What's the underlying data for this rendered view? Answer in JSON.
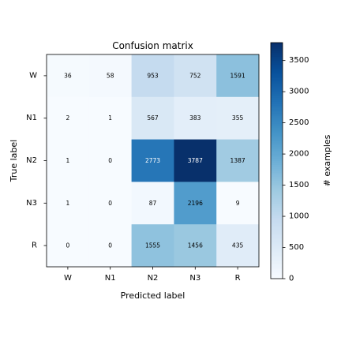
{
  "chart_data": {
    "type": "heatmap",
    "title": "Confusion matrix",
    "xlabel": "Predicted label",
    "ylabel": "True label",
    "x_categories": [
      "W",
      "N1",
      "N2",
      "N3",
      "R"
    ],
    "y_categories": [
      "W",
      "N1",
      "N2",
      "N3",
      "R"
    ],
    "values": [
      [
        36,
        58,
        953,
        752,
        1591
      ],
      [
        2,
        1,
        567,
        383,
        355
      ],
      [
        1,
        0,
        2773,
        3787,
        1387
      ],
      [
        1,
        0,
        87,
        2196,
        9
      ],
      [
        0,
        0,
        1555,
        1456,
        435
      ]
    ],
    "colormap": "Blues",
    "value_range": [
      0,
      3787
    ],
    "colorbar": {
      "label": "# examples",
      "ticks": [
        0,
        500,
        1000,
        1500,
        2000,
        2500,
        3000,
        3500
      ],
      "tick_labels": [
        "0",
        "500",
        "1000",
        "1500",
        "2000",
        "2500",
        "3000",
        "3500"
      ]
    }
  }
}
